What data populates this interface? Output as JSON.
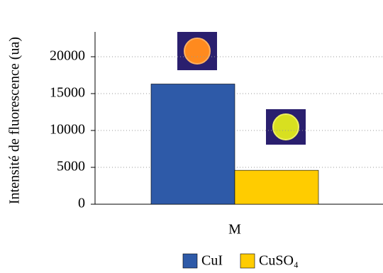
{
  "chart_data": {
    "type": "bar",
    "y_label": "Intensité de fluorescence (ua)",
    "categories": [
      "M"
    ],
    "series": [
      {
        "name": "CuI",
        "color": "#2e5aa8",
        "values": [
          16300
        ]
      },
      {
        "name": "CuSO₄",
        "color": "#ffcc00",
        "values": [
          4600
        ]
      }
    ],
    "ylim": [
      0,
      20000
    ],
    "yticks": [
      0,
      5000,
      10000,
      15000,
      20000
    ],
    "grid": true,
    "legend": "bottom"
  }
}
